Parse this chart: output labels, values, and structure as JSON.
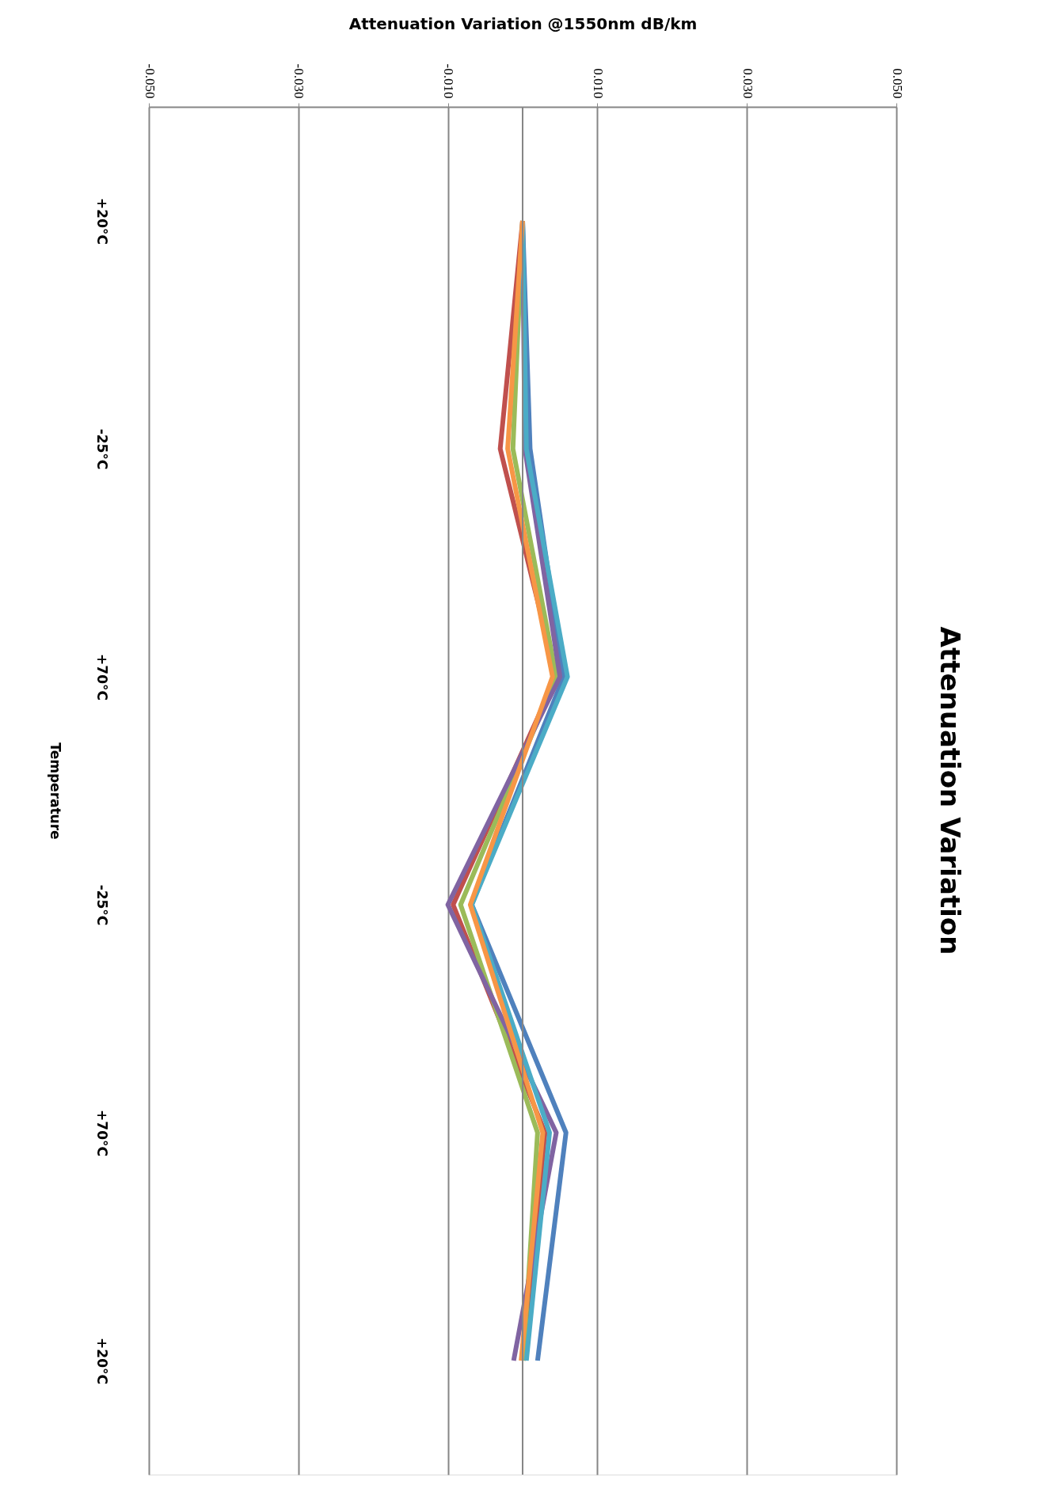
{
  "chart_data": {
    "type": "line",
    "title": "Attenuation Variation",
    "orientation": "horizontal",
    "xlabel": "Attenuation Variation @1550nm dB/km",
    "ylabel": "Temperature",
    "categories": [
      "+20°C",
      "-25°C",
      "+70°C",
      "-25°C",
      "+70°C",
      "+20°C"
    ],
    "xlim": [
      -0.05,
      0.05
    ],
    "xticks": [
      {
        "value": -0.05,
        "label": "-0.050"
      },
      {
        "value": -0.03,
        "label": "-0.030"
      },
      {
        "value": -0.01,
        "label": "-0.010"
      },
      {
        "value": 0.01,
        "label": "0.010"
      },
      {
        "value": 0.03,
        "label": "0.030"
      },
      {
        "value": 0.05,
        "label": "0.050"
      }
    ],
    "grid": "x",
    "legend": false,
    "line_style": "solid",
    "ref_lines": [
      {
        "axis": "x",
        "value": 0,
        "color": "#868686"
      }
    ],
    "series": [
      {
        "color": "#4f81bd",
        "values": [
          0,
          0.001,
          0.0055,
          -0.0068,
          0.0058,
          0.002
        ]
      },
      {
        "color": "#c0504d",
        "values": [
          0,
          -0.003,
          0.0045,
          -0.0093,
          0.003,
          0.0001
        ]
      },
      {
        "color": "#9bbb59",
        "values": [
          0,
          -0.0013,
          0.0045,
          -0.0083,
          0.002,
          0.0001
        ]
      },
      {
        "color": "#8064a2",
        "values": [
          0,
          0.0003,
          0.005,
          -0.01,
          0.0045,
          -0.0012
        ]
      },
      {
        "color": "#4bacc6",
        "values": [
          0,
          0.0005,
          0.006,
          -0.0068,
          0.0036,
          0.0005
        ]
      },
      {
        "color": "#f79646",
        "values": [
          0,
          -0.002,
          0.004,
          -0.007,
          0.0027,
          -0.0002
        ]
      }
    ]
  }
}
